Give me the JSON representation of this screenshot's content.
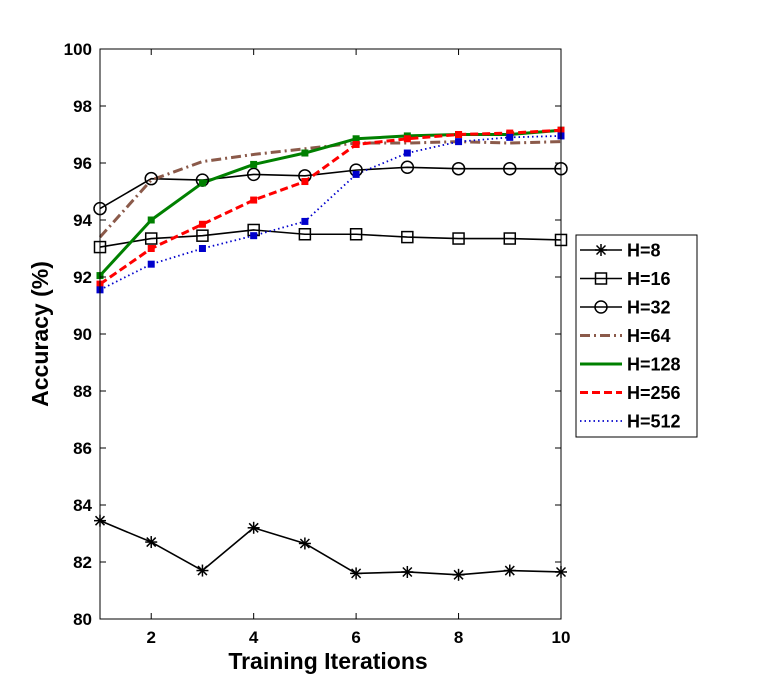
{
  "chart_data": {
    "type": "line",
    "title": "",
    "xlabel": "Training Iterations",
    "ylabel": "Accuracy (%)",
    "xlim": [
      1,
      10
    ],
    "ylim": [
      80,
      100
    ],
    "xticks": [
      2,
      4,
      6,
      8,
      10
    ],
    "yticks": [
      80,
      82,
      84,
      86,
      88,
      90,
      92,
      94,
      96,
      98,
      100
    ],
    "grid": false,
    "legend_position": "right",
    "x": [
      1,
      2,
      3,
      4,
      5,
      6,
      7,
      8,
      9,
      10
    ],
    "series": [
      {
        "name": "H=8",
        "color": "#000000",
        "line_style": "solid",
        "marker": "asterisk",
        "values": [
          83.45,
          82.7,
          81.7,
          83.2,
          82.65,
          81.6,
          81.65,
          81.55,
          81.7,
          81.65
        ]
      },
      {
        "name": "H=16",
        "color": "#000000",
        "line_style": "solid",
        "marker": "square",
        "values": [
          93.05,
          93.35,
          93.45,
          93.65,
          93.5,
          93.5,
          93.4,
          93.35,
          93.35,
          93.3
        ]
      },
      {
        "name": "H=32",
        "color": "#000000",
        "line_style": "solid",
        "marker": "circle",
        "values": [
          94.4,
          95.45,
          95.4,
          95.6,
          95.55,
          95.75,
          95.85,
          95.8,
          95.8,
          95.8
        ]
      },
      {
        "name": "H=64",
        "color": "#8B5A4A",
        "line_style": "dashdot",
        "marker": "none",
        "values": [
          93.4,
          95.4,
          96.05,
          96.3,
          96.5,
          96.7,
          96.7,
          96.75,
          96.7,
          96.75
        ]
      },
      {
        "name": "H=128",
        "color": "#008000",
        "line_style": "solid",
        "marker": "small-square",
        "values": [
          92.05,
          94.0,
          95.3,
          95.95,
          96.35,
          96.85,
          96.95,
          97.0,
          97.0,
          97.15
        ]
      },
      {
        "name": "H=256",
        "color": "#FF0000",
        "line_style": "dashed",
        "marker": "small-square",
        "values": [
          91.75,
          93.0,
          93.85,
          94.7,
          95.35,
          96.65,
          96.85,
          97.0,
          97.05,
          97.15
        ]
      },
      {
        "name": "H=512",
        "color": "#0000CC",
        "line_style": "dotted",
        "marker": "small-square",
        "values": [
          91.55,
          92.45,
          93.0,
          93.45,
          93.95,
          95.6,
          96.35,
          96.75,
          96.9,
          96.95
        ]
      }
    ]
  }
}
